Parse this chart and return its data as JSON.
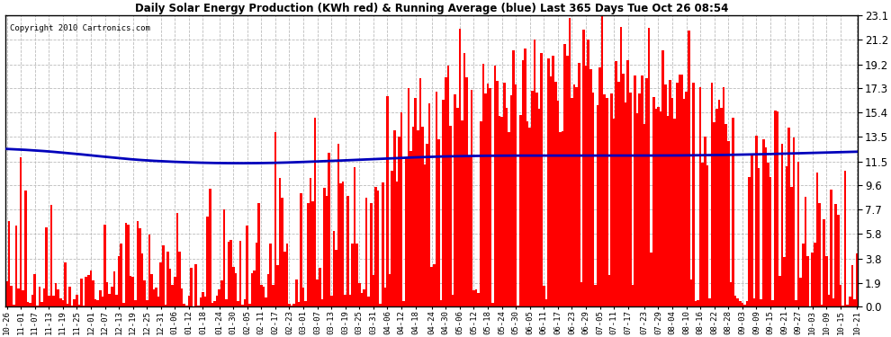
{
  "title": "Daily Solar Energy Production (KWh red) & Running Average (blue) Last 365 Days Tue Oct 26 08:54",
  "copyright": "Copyright 2010 Cartronics.com",
  "yticks": [
    0.0,
    1.9,
    3.8,
    5.8,
    7.7,
    9.6,
    11.5,
    13.5,
    15.4,
    17.3,
    19.2,
    21.2,
    23.1
  ],
  "ylim": [
    0.0,
    23.1
  ],
  "bar_color": "#FF0000",
  "avg_color": "#0000BB",
  "background_color": "#FFFFFF",
  "grid_color": "#BBBBBB",
  "x_labels": [
    "10-26",
    "11-01",
    "11-07",
    "11-13",
    "11-19",
    "11-25",
    "12-01",
    "12-07",
    "12-13",
    "12-19",
    "12-25",
    "12-31",
    "01-06",
    "01-12",
    "01-18",
    "01-24",
    "01-30",
    "02-05",
    "02-11",
    "02-17",
    "02-23",
    "03-01",
    "03-07",
    "03-13",
    "03-19",
    "03-25",
    "03-31",
    "04-06",
    "04-12",
    "04-18",
    "04-24",
    "04-30",
    "05-06",
    "05-12",
    "05-18",
    "05-24",
    "05-30",
    "06-05",
    "06-11",
    "06-17",
    "06-23",
    "06-29",
    "07-05",
    "07-11",
    "07-17",
    "07-23",
    "07-29",
    "08-04",
    "08-10",
    "08-16",
    "08-22",
    "08-28",
    "09-03",
    "09-09",
    "09-15",
    "09-21",
    "09-27",
    "10-03",
    "10-09",
    "10-15",
    "10-21"
  ],
  "avg_curve": [
    12.5,
    12.45,
    12.38,
    12.3,
    12.2,
    12.1,
    11.98,
    11.87,
    11.76,
    11.66,
    11.58,
    11.52,
    11.47,
    11.43,
    11.4,
    11.38,
    11.37,
    11.37,
    11.38,
    11.4,
    11.43,
    11.47,
    11.51,
    11.55,
    11.6,
    11.65,
    11.7,
    11.75,
    11.8,
    11.84,
    11.88,
    11.91,
    11.93,
    11.95,
    11.96,
    11.97,
    11.97,
    11.97,
    11.97,
    11.97,
    11.97,
    11.97,
    11.97,
    11.97,
    11.97,
    11.97,
    11.98,
    11.98,
    11.99,
    12.0,
    12.01,
    12.03,
    12.05,
    12.07,
    12.1,
    12.13,
    12.16,
    12.19,
    12.22,
    12.25,
    12.28
  ]
}
